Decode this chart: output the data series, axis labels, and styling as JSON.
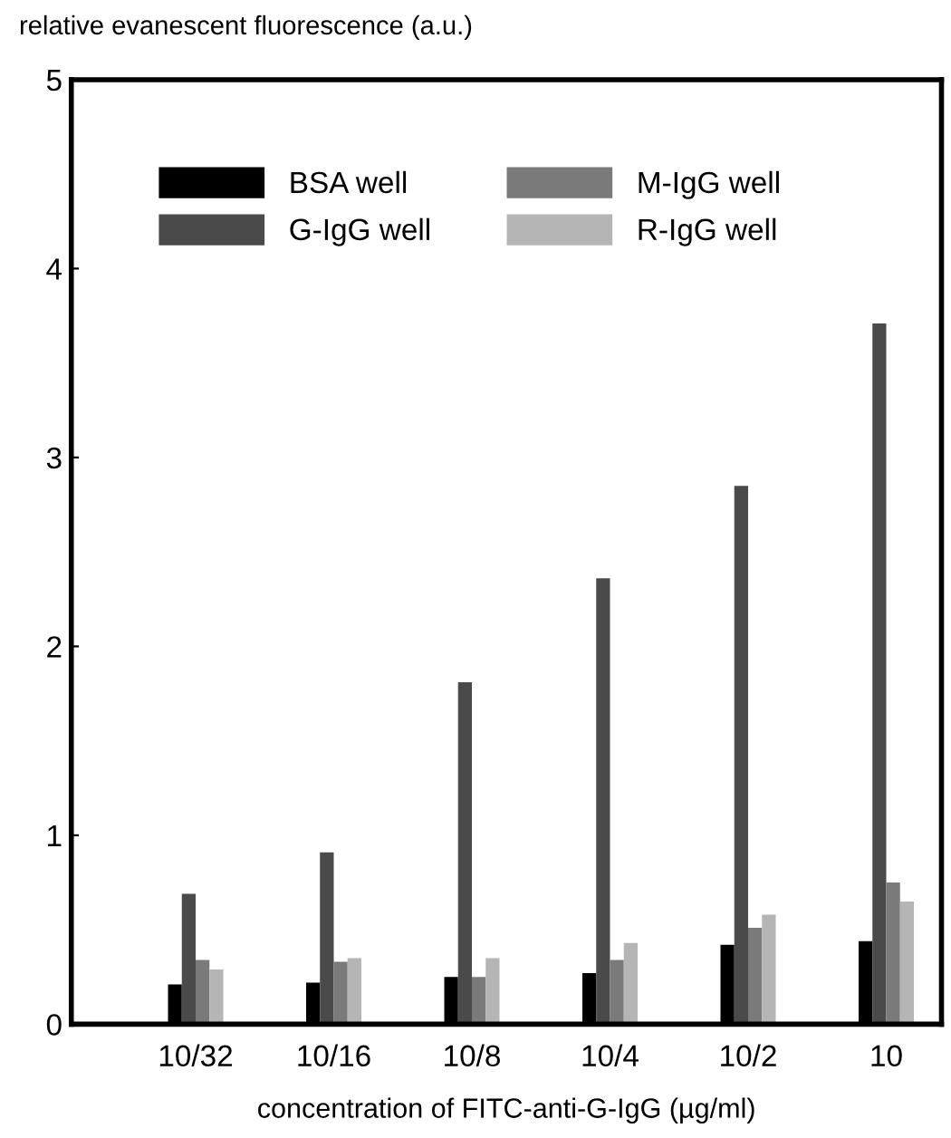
{
  "chart_data": {
    "type": "bar",
    "ylabel": "relative evanescent fluorescence (a.u.)",
    "xlabel": "concentration of FITC-anti-G-IgG (µg/ml)",
    "categories": [
      "10/32",
      "10/16",
      "10/8",
      "10/4",
      "10/2",
      "10"
    ],
    "series": [
      {
        "name": "BSA well",
        "color": "#000000",
        "values": [
          0.21,
          0.22,
          0.25,
          0.27,
          0.42,
          0.44
        ]
      },
      {
        "name": "G-IgG well",
        "color": "#4a4a4a",
        "values": [
          0.69,
          0.91,
          1.81,
          2.36,
          2.85,
          3.71
        ]
      },
      {
        "name": "M-IgG well",
        "color": "#7a7a7a",
        "values": [
          0.34,
          0.33,
          0.25,
          0.34,
          0.51,
          0.75
        ]
      },
      {
        "name": "R-IgG well",
        "color": "#b5b5b5",
        "values": [
          0.29,
          0.35,
          0.35,
          0.43,
          0.58,
          0.65
        ]
      }
    ],
    "ylim": [
      0,
      5
    ],
    "yticks": [
      0,
      1,
      2,
      3,
      4,
      5
    ],
    "grid": false,
    "legend": "top left"
  }
}
